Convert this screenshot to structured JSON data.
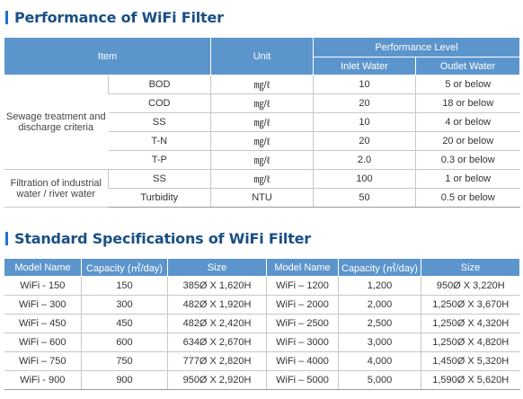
{
  "performance": {
    "title": "Performance of WiFi Filter",
    "headers": {
      "item": "Item",
      "unit": "Unit",
      "level": "Performance Level",
      "inlet": "Inlet Water",
      "outlet": "Outlet Water"
    },
    "groups": [
      {
        "category": "Sewage treatment and discharge criteria",
        "rows": [
          {
            "item": "BOD",
            "unit": "㎎/ℓ",
            "inlet": "10",
            "outlet": "5 or below"
          },
          {
            "item": "COD",
            "unit": "㎎/ℓ",
            "inlet": "20",
            "outlet": "18 or below"
          },
          {
            "item": "SS",
            "unit": "㎎/ℓ",
            "inlet": "10",
            "outlet": "4 or below"
          },
          {
            "item": "T-N",
            "unit": "㎎/ℓ",
            "inlet": "20",
            "outlet": "20 or below"
          },
          {
            "item": "T-P",
            "unit": "㎎/ℓ",
            "inlet": "2.0",
            "outlet": "0.3 or below"
          }
        ]
      },
      {
        "category": "Filtration of industrial water / river water",
        "rows": [
          {
            "item": "SS",
            "unit": "㎎/ℓ",
            "inlet": "100",
            "outlet": "1 or below"
          },
          {
            "item": "Turbidity",
            "unit": "NTU",
            "inlet": "50",
            "outlet": "0.5 or below"
          }
        ]
      }
    ]
  },
  "specs": {
    "title": "Standard Specifications of WiFi Filter",
    "headers": {
      "model": "Model Name",
      "capacity": "Capacity (㎥/day)",
      "size": "Size"
    },
    "rows": [
      {
        "model1": "WiFi - 150",
        "cap1": "150",
        "size1": "385Ø X 1,620H",
        "model2": "WiFi – 1200",
        "cap2": "1,200",
        "size2": "950Ø X 3,220H"
      },
      {
        "model1": "WiFi – 300",
        "cap1": "300",
        "size1": "482Ø X 1,920H",
        "model2": "WiFi – 2000",
        "cap2": "2,000",
        "size2": "1,250Ø X 3,670H"
      },
      {
        "model1": "WiFi – 450",
        "cap1": "450",
        "size1": "482Ø X 2,420H",
        "model2": "WiFi – 2500",
        "cap2": "2,500",
        "size2": "1,250Ø X 4,320H"
      },
      {
        "model1": "WiFi – 600",
        "cap1": "600",
        "size1": "634Ø X 2,670H",
        "model2": "WiFi – 3000",
        "cap2": "3,000",
        "size2": "1,250Ø X 4,820H"
      },
      {
        "model1": "WiFi – 750",
        "cap1": "750",
        "size1": "777Ø X 2,820H",
        "model2": "WiFi – 4000",
        "cap2": "4,000",
        "size2": "1,450Ø X 5,320H"
      },
      {
        "model1": "WiFi - 900",
        "cap1": "900",
        "size1": "950Ø X 2,920H",
        "model2": "WiFi – 5000",
        "cap2": "5,000",
        "size2": "1,590Ø X 5,620H"
      }
    ]
  }
}
